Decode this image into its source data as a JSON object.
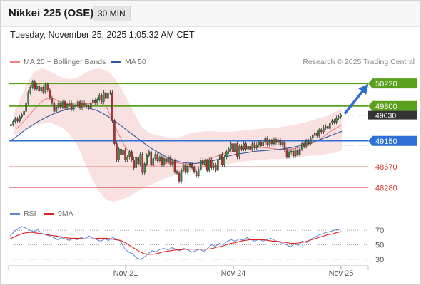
{
  "header": {
    "title": "Nikkei 225 (OSE)",
    "timeframe": "30 MIN",
    "datetime": "Tuesday, November 25, 2025 1:05:32 AM CET"
  },
  "legend": {
    "price": [
      {
        "label": "MA 20 + Bollinger Bands",
        "color": "#f08080"
      },
      {
        "label": "MA 50",
        "color": "#2c5aa0"
      }
    ],
    "rsi": [
      {
        "label": "RSI",
        "color": "#5b86d8"
      },
      {
        "label": "9MA",
        "color": "#e02020"
      }
    ],
    "credit": "Research © 2025 Trading Central"
  },
  "chart_data": [
    {
      "type": "candlestick",
      "title": "Nikkei 225 (OSE) 30 MIN",
      "ylim": [
        48020,
        50500
      ],
      "x_labels": [
        "Nov 21",
        "Nov 24",
        "Nov 25"
      ],
      "levels": [
        {
          "value": 50220,
          "label": "50220",
          "kind": "resistance",
          "color": "#5aa01c"
        },
        {
          "value": 49800,
          "label": "49800",
          "kind": "resistance",
          "color": "#5aa01c"
        },
        {
          "value": 49630,
          "label": "49630",
          "kind": "last",
          "color": "#333333"
        },
        {
          "value": 49150,
          "label": "49150",
          "kind": "pivot",
          "color": "#2e6fd6"
        },
        {
          "value": 48670,
          "label": "48670",
          "kind": "support",
          "color": "#e06060"
        },
        {
          "value": 48280,
          "label": "48280",
          "kind": "support",
          "color": "#e06060"
        }
      ],
      "closes": [
        49460,
        49510,
        49560,
        49520,
        49600,
        49640,
        49700,
        49850,
        50050,
        50150,
        50250,
        50120,
        50180,
        50080,
        50150,
        50060,
        50200,
        50100,
        49950,
        49850,
        49700,
        49780,
        49850,
        49780,
        49880,
        49760,
        49830,
        49860,
        49740,
        49820,
        49800,
        49880,
        49760,
        49860,
        49820,
        49790,
        49760,
        49860,
        49900,
        49860,
        49920,
        50000,
        49880,
        50050,
        49940,
        50040,
        50050,
        49520,
        49100,
        48800,
        49000,
        48900,
        48980,
        48800,
        48850,
        48950,
        48800,
        48650,
        48850,
        48720,
        48900,
        48560,
        48720,
        48880,
        48950,
        48700,
        48820,
        48900,
        48780,
        48850,
        48700,
        48820,
        48760,
        48850,
        48700,
        48780,
        48580,
        48550,
        48400,
        48600,
        48700,
        48560,
        48680,
        48720,
        48650,
        48580,
        48500,
        48620,
        48800,
        48700,
        48780,
        48600,
        48800,
        48650,
        48700,
        48600,
        48800,
        48900,
        48700,
        48850,
        48950,
        49000,
        49100,
        48950,
        49100,
        48850,
        49050,
        49000,
        49100,
        49000,
        49050,
        48980,
        49100,
        49020,
        49080,
        49130,
        49060,
        49120,
        49200,
        49080,
        49150,
        49100,
        49180,
        49120,
        49160,
        49080,
        49130,
        48980,
        48860,
        48940,
        48960,
        48870,
        48980,
        48900,
        49000,
        49100,
        49050,
        49150,
        49100,
        49200,
        49250,
        49300,
        49250,
        49360,
        49320,
        49400,
        49420,
        49380,
        49480,
        49520,
        49500,
        49580,
        49600,
        49630
      ],
      "ma20": [
        49380,
        49460,
        49560,
        49660,
        49760,
        49850,
        49920,
        49950,
        49930,
        49890,
        49850,
        49830,
        49820,
        49820,
        49830,
        49840,
        49850,
        49860,
        49850,
        49800,
        49600,
        49400,
        49220,
        49050,
        48930,
        48850,
        48780,
        48730,
        48700,
        48690,
        48700,
        48720,
        48740,
        48750,
        48740,
        48730,
        48720,
        48720,
        48730,
        48750,
        48780,
        48810,
        48850,
        48880,
        48910,
        48940,
        48960,
        48980,
        49000,
        49010,
        49020,
        49030,
        49030,
        49020,
        49010,
        49000,
        48990,
        48990,
        49000,
        49010,
        49030,
        49060,
        49080,
        49120,
        49160,
        49220,
        49290,
        49350,
        49400,
        49450
      ],
      "ma50": [
        49150,
        49250,
        49350,
        49440,
        49520,
        49590,
        49650,
        49700,
        49740,
        49760,
        49770,
        49760,
        49730,
        49670,
        49590,
        49500,
        49400,
        49300,
        49200,
        49100,
        49010,
        48930,
        48860,
        48800,
        48760,
        48740,
        48730,
        48740,
        48760,
        48790,
        48830,
        48870,
        48900,
        48920,
        48940,
        48960,
        48970,
        48980,
        48990,
        49010,
        49030,
        49060,
        49090,
        49130,
        49180,
        49230,
        49280,
        49330
      ],
      "bb_upper": [
        49650,
        49950,
        50250,
        50450,
        50500,
        50450,
        50380,
        50320,
        50300,
        50330,
        50420,
        50480,
        50500,
        50460,
        50350,
        50150,
        49900,
        49650,
        49400,
        49300,
        49260,
        49230,
        49200,
        49210,
        49250,
        49300,
        49320,
        49330,
        49330,
        49320,
        49320,
        49330,
        49340,
        49350,
        49370,
        49380,
        49390,
        49400,
        49420,
        49440,
        49470,
        49500,
        49540,
        49580,
        49620,
        49690,
        49740
      ],
      "bb_lower": [
        49250,
        49300,
        49380,
        49450,
        49470,
        49500,
        49450,
        49380,
        49250,
        49050,
        48750,
        48450,
        48200,
        48050,
        48020,
        48050,
        48100,
        48180,
        48260,
        48320,
        48380,
        48440,
        48490,
        48530,
        48560,
        48590,
        48620,
        48650,
        48670,
        48690,
        48710,
        48740,
        48760,
        48780,
        48790,
        48800,
        48810,
        48810,
        48820,
        48830,
        48850,
        48870,
        48880,
        48890,
        48910,
        48930,
        48980
      ]
    },
    {
      "type": "line",
      "title": "RSI",
      "ylim": [
        25,
        80
      ],
      "y_ticks": [
        70,
        50,
        30
      ],
      "series": [
        {
          "name": "RSI",
          "color": "#5b86d8",
          "values": [
            62,
            68,
            72,
            75,
            73,
            70,
            68,
            71,
            66,
            64,
            62,
            60,
            57,
            60,
            58,
            56,
            59,
            57,
            60,
            58,
            62,
            59,
            57,
            55,
            58,
            56,
            60,
            58,
            55,
            45,
            40,
            38,
            32,
            30,
            33,
            38,
            42,
            40,
            44,
            45,
            43,
            46,
            44,
            42,
            45,
            43,
            40,
            42,
            44,
            41,
            45,
            50,
            48,
            52,
            50,
            55,
            57,
            55,
            58,
            56,
            60,
            57,
            55,
            58,
            55,
            57,
            59,
            56,
            54,
            52,
            50,
            47,
            52,
            49,
            55,
            53,
            57,
            60,
            63,
            65,
            67,
            68,
            70,
            71,
            72
          ]
        },
        {
          "name": "9MA",
          "color": "#e02020",
          "values": [
            58,
            61,
            64,
            66,
            67,
            67,
            66,
            65,
            64,
            63,
            62,
            61,
            60,
            59,
            59,
            59,
            58,
            58,
            58,
            59,
            59,
            59,
            58,
            57,
            56,
            53,
            49,
            45,
            41,
            38,
            37,
            37,
            38,
            40,
            41,
            42,
            43,
            43,
            44,
            44,
            44,
            44,
            44,
            44,
            45,
            47,
            48,
            50,
            52,
            53,
            55,
            56,
            57,
            57,
            57,
            57,
            56,
            55,
            55,
            54,
            53,
            52,
            52,
            53,
            54,
            56,
            58,
            60,
            62,
            64,
            65,
            67,
            68
          ]
        }
      ]
    }
  ]
}
